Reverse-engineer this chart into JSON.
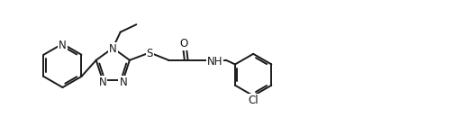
{
  "background_color": "#ffffff",
  "line_color": "#1a1a1a",
  "line_width": 1.4,
  "font_size": 8.5,
  "figsize": [
    5.14,
    1.41
  ],
  "dpi": 100,
  "xlim": [
    0.0,
    10.5
  ],
  "ylim": [
    0.5,
    3.5
  ]
}
